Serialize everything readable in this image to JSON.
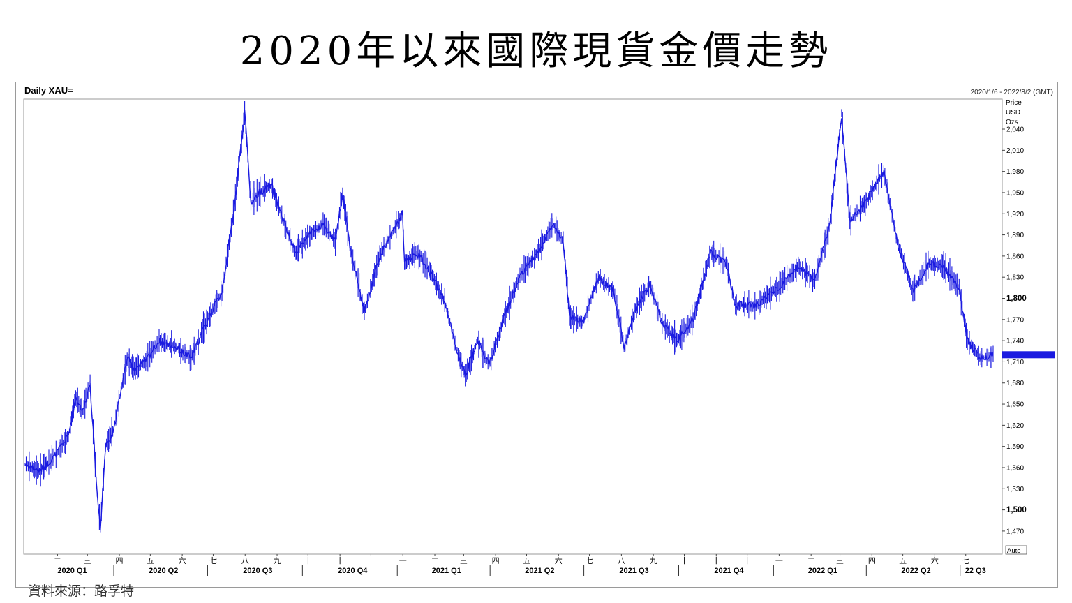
{
  "page": {
    "title": "2020年以來國際現貨金價走勢",
    "source": "資料來源：路孚特"
  },
  "chart_data": {
    "type": "line",
    "title": "Daily XAU=",
    "date_range": "2020/1/6 - 2022/8/2 (GMT)",
    "ylabel": [
      "Price",
      "USD",
      "Ozs"
    ],
    "ylim": [
      1440,
      2070
    ],
    "y_ticks": [
      2040,
      2010,
      1980,
      1950,
      1920,
      1890,
      1860,
      1830,
      1800,
      1770,
      1740,
      1710,
      1680,
      1650,
      1620,
      1590,
      1560,
      1530,
      1500,
      1470
    ],
    "y_tick_labels": [
      "2,040",
      "2,010",
      "1,980",
      "1,950",
      "1,920",
      "1,890",
      "1,860",
      "1,830",
      "1,800",
      "1,770",
      "1,740",
      "1,710",
      "1,680",
      "1,650",
      "1,620",
      "1,590",
      "1,560",
      "1,530",
      "1,500",
      "1,470"
    ],
    "y_bold_ticks": [
      1800,
      1500
    ],
    "current_price": 1720,
    "auto_label": "Auto",
    "month_labels": [
      "二",
      "三",
      "四",
      "五",
      "六",
      "七",
      "八",
      "九",
      "十",
      "十",
      "十",
      "一",
      "二",
      "三",
      "四",
      "五",
      "六",
      "七",
      "八",
      "九",
      "十",
      "十",
      "十",
      "一",
      "二",
      "三",
      "四",
      "五",
      "六",
      "七"
    ],
    "quarter_labels": [
      "2020 Q1",
      "2020 Q2",
      "2020 Q3",
      "2020 Q4",
      "2021 Q1",
      "2021 Q2",
      "2021 Q3",
      "2021 Q4",
      "2022 Q1",
      "2022 Q2",
      "22 Q3"
    ],
    "series": [
      {
        "color": "#1a1ae0",
        "x": [
          "2020-01-06",
          "2020-01-20",
          "2020-02-03",
          "2020-02-17",
          "2020-02-24",
          "2020-03-02",
          "2020-03-09",
          "2020-03-16",
          "2020-03-19",
          "2020-03-24",
          "2020-04-01",
          "2020-04-14",
          "2020-04-21",
          "2020-05-01",
          "2020-05-15",
          "2020-06-01",
          "2020-06-15",
          "2020-07-01",
          "2020-07-15",
          "2020-07-27",
          "2020-08-06",
          "2020-08-12",
          "2020-08-20",
          "2020-09-01",
          "2020-09-15",
          "2020-09-24",
          "2020-10-08",
          "2020-10-21",
          "2020-11-02",
          "2020-11-09",
          "2020-11-16",
          "2020-11-30",
          "2020-12-15",
          "2021-01-06",
          "2021-01-08",
          "2021-01-20",
          "2021-02-03",
          "2021-02-16",
          "2021-03-01",
          "2021-03-08",
          "2021-03-20",
          "2021-03-31",
          "2021-04-15",
          "2021-05-01",
          "2021-05-15",
          "2021-06-01",
          "2021-06-11",
          "2021-06-17",
          "2021-06-30",
          "2021-07-15",
          "2021-07-30",
          "2021-08-09",
          "2021-08-20",
          "2021-09-03",
          "2021-09-15",
          "2021-09-29",
          "2021-10-15",
          "2021-11-01",
          "2021-11-16",
          "2021-11-25",
          "2021-12-15",
          "2022-01-05",
          "2022-01-25",
          "2022-02-10",
          "2022-02-24",
          "2022-03-08",
          "2022-03-16",
          "2022-03-31",
          "2022-04-18",
          "2022-05-01",
          "2022-05-16",
          "2022-06-01",
          "2022-06-15",
          "2022-06-30",
          "2022-07-08",
          "2022-07-21",
          "2022-08-02"
        ],
        "y": [
          1565,
          1555,
          1575,
          1605,
          1660,
          1640,
          1680,
          1520,
          1475,
          1590,
          1615,
          1715,
          1700,
          1710,
          1740,
          1730,
          1715,
          1770,
          1810,
          1930,
          2065,
          1935,
          1950,
          1960,
          1900,
          1865,
          1890,
          1905,
          1880,
          1950,
          1875,
          1780,
          1860,
          1920,
          1850,
          1865,
          1835,
          1795,
          1720,
          1690,
          1740,
          1705,
          1775,
          1835,
          1860,
          1905,
          1880,
          1775,
          1765,
          1830,
          1810,
          1730,
          1785,
          1820,
          1765,
          1740,
          1770,
          1865,
          1850,
          1790,
          1790,
          1815,
          1845,
          1825,
          1900,
          2060,
          1910,
          1935,
          1980,
          1880,
          1810,
          1850,
          1845,
          1815,
          1740,
          1715,
          1720
        ]
      }
    ]
  }
}
